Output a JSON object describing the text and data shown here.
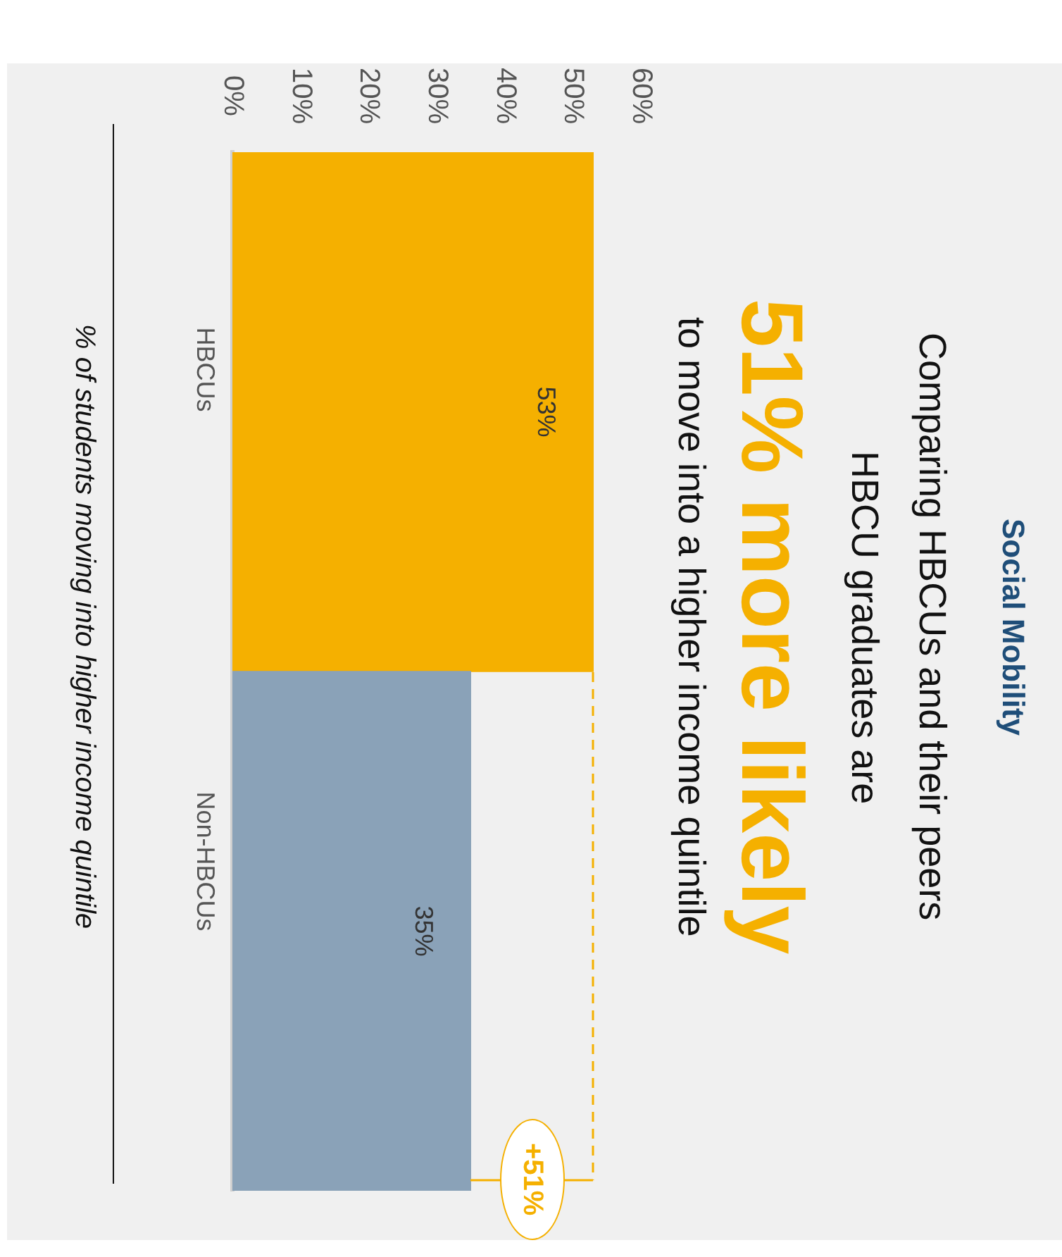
{
  "chart_data": {
    "type": "bar",
    "orientation": "horizontal",
    "title": "Social Mobility",
    "subtitle": "Comparing HBCUs and their peers\nHBCU graduates are\n51% more likely\nto move into a higher income quintile",
    "ylabel": "% of students moving into higher income quintile",
    "categories": [
      "HBCUs",
      "Non-HBCUs"
    ],
    "values": [
      53,
      35
    ],
    "colors": [
      "#f5b000",
      "#8aa2b8"
    ],
    "value_labels": [
      "53%",
      "35%"
    ],
    "xlim": [
      0,
      60
    ],
    "xticks": [
      {
        "value": 0,
        "label": "0%"
      },
      {
        "value": 10,
        "label": "10%"
      },
      {
        "value": 20,
        "label": "20%"
      },
      {
        "value": 30,
        "label": "30%"
      },
      {
        "value": 40,
        "label": "40%"
      },
      {
        "value": 50,
        "label": "50%"
      },
      {
        "value": 60,
        "label": "60%"
      }
    ],
    "annotations": [
      "+51%"
    ],
    "grid": false,
    "legend": false
  }
}
